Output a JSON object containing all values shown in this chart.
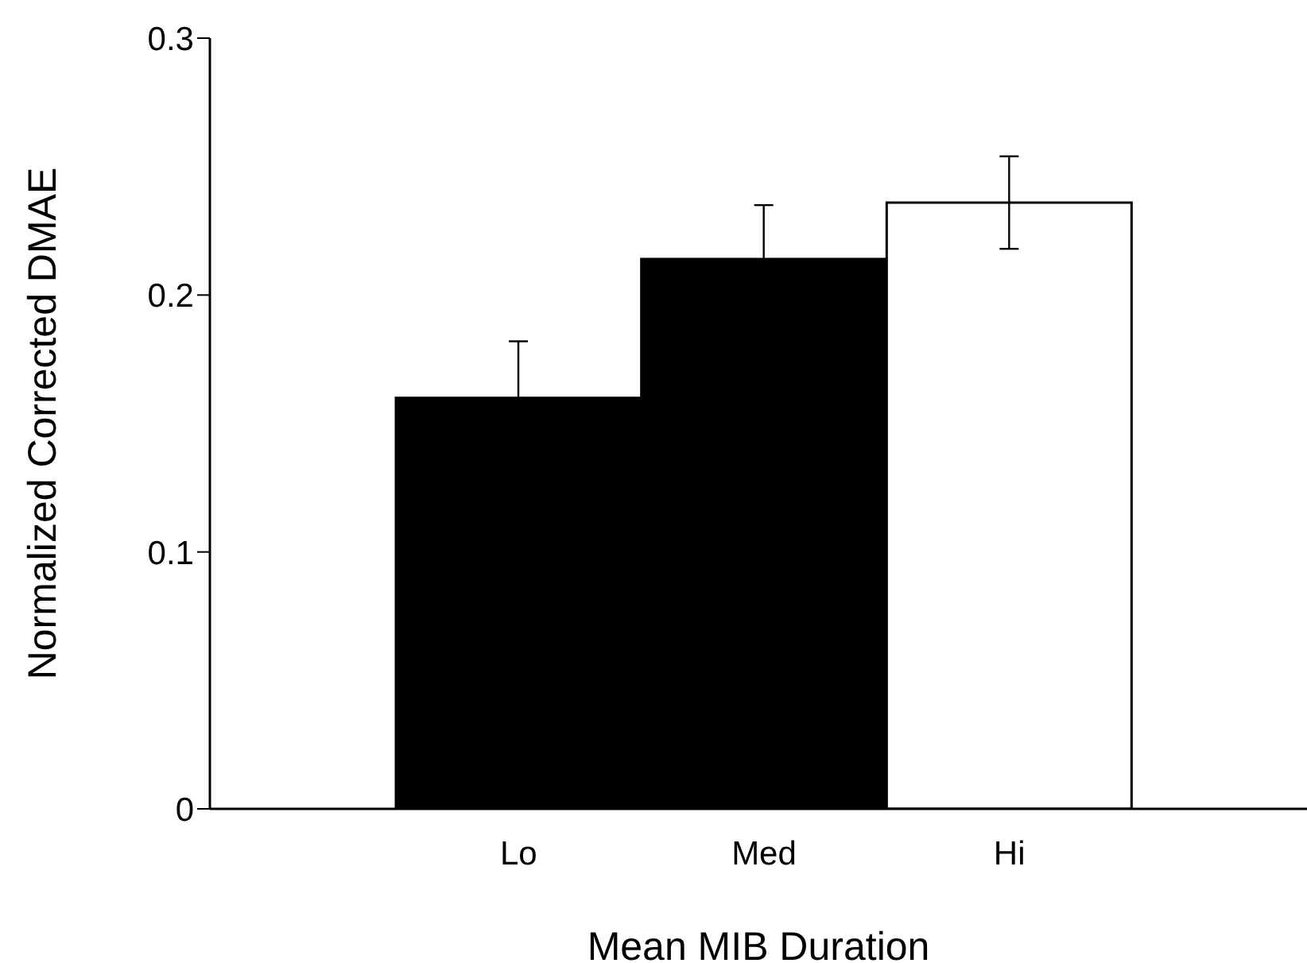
{
  "chart_data": {
    "type": "bar",
    "xlabel": "Mean MIB Duration",
    "ylabel": "Normalized Corrected DMAE",
    "categories": [
      "Lo",
      "Med",
      "Hi"
    ],
    "values": [
      0.16,
      0.214,
      0.236
    ],
    "errors": [
      0.022,
      0.021,
      0.018
    ],
    "colors": [
      "#000000",
      "#000000",
      "#ffffff"
    ],
    "ylim": [
      0,
      0.3
    ],
    "yticks": [
      0,
      0.1,
      0.2,
      0.3
    ],
    "grid": false
  }
}
